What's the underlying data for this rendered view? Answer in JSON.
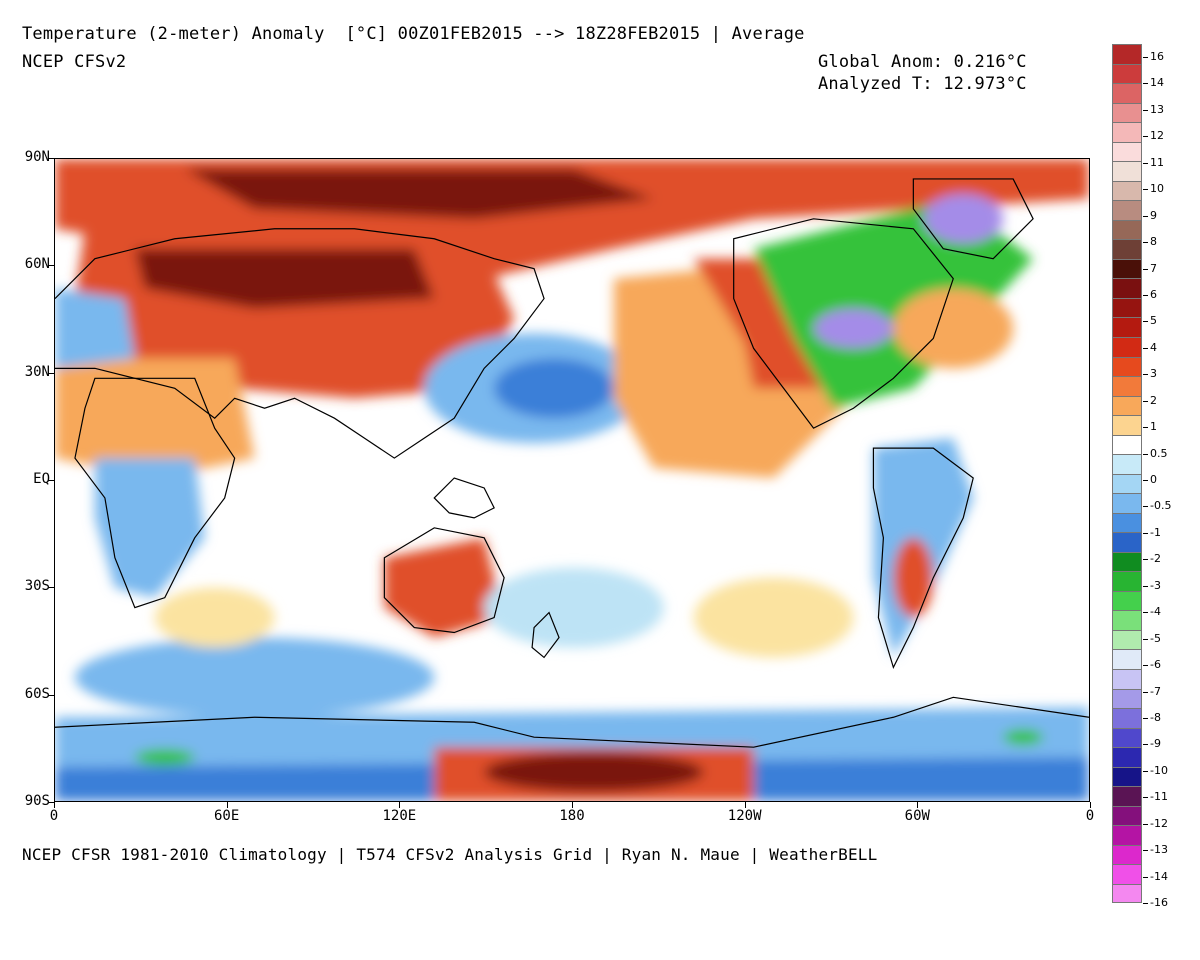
{
  "header": {
    "title": "Temperature (2-meter) Anomaly  [°C] 00Z01FEB2015 --> 18Z28FEB2015 | Average",
    "model": "NCEP CFSv2",
    "global_anom": "Global Anom: 0.216°C",
    "analyzed_t": "Analyzed T: 12.973°C"
  },
  "footer": {
    "credits": "NCEP CFSR 1981-2010 Climatology | T574 CFSv2 Analysis Grid | Ryan N. Maue | WeatherBELL"
  },
  "map": {
    "lat_labels": [
      "90N",
      "60N",
      "30N",
      "EQ",
      "30S",
      "60S",
      "90S"
    ],
    "lon_labels": [
      "0",
      "60E",
      "120E",
      "180",
      "120W",
      "60W",
      "0"
    ],
    "colors": {
      "ocean_neutral": "#ffffff",
      "warm_light": "#fbe3a0",
      "warm_mid": "#f7a85a",
      "warm_strong": "#e0502a",
      "warm_extreme": "#7a1810",
      "cool_light": "#bde3f5",
      "cool_mid": "#79b8ee",
      "cool_strong": "#3a7fd8",
      "cold_green": "#34c23a",
      "cold_purple": "#a48ce8",
      "coast": "#000000"
    }
  },
  "colorbar": {
    "labels": [
      "16",
      "14",
      "13",
      "12",
      "11",
      "10",
      "9",
      "8",
      "7",
      "6",
      "5",
      "4",
      "3",
      "2",
      "1",
      "0.5",
      "0",
      "-0.5",
      "-1",
      "-2",
      "-3",
      "-4",
      "-5",
      "-6",
      "-7",
      "-8",
      "-9",
      "-10",
      "-11",
      "-12",
      "-13",
      "-14",
      "-16"
    ],
    "colors": [
      "#b42828",
      "#cc3c3c",
      "#dc6464",
      "#e89090",
      "#f4b8b8",
      "#fadcdc",
      "#f0e0d8",
      "#d8b8ac",
      "#b88c80",
      "#966858",
      "#6e4036",
      "#4a1008",
      "#7a1010",
      "#961410",
      "#b41a10",
      "#d22a14",
      "#e64a1e",
      "#f27a3a",
      "#f8a85a",
      "#fcd490",
      "#ffffff",
      "#c8eaf8",
      "#a4d6f4",
      "#7ab8ee",
      "#4a90e0",
      "#2a64c8",
      "#108c20",
      "#28b432",
      "#44d04c",
      "#7ae07a",
      "#b0ecae",
      "#e0eaf8",
      "#c8c4f4",
      "#a49ae8",
      "#7c70dc",
      "#5048cc",
      "#2c28b0",
      "#161488",
      "#5a1454",
      "#84107c",
      "#b414a4",
      "#dc28cc",
      "#f050e8",
      "#f488f0"
    ]
  }
}
